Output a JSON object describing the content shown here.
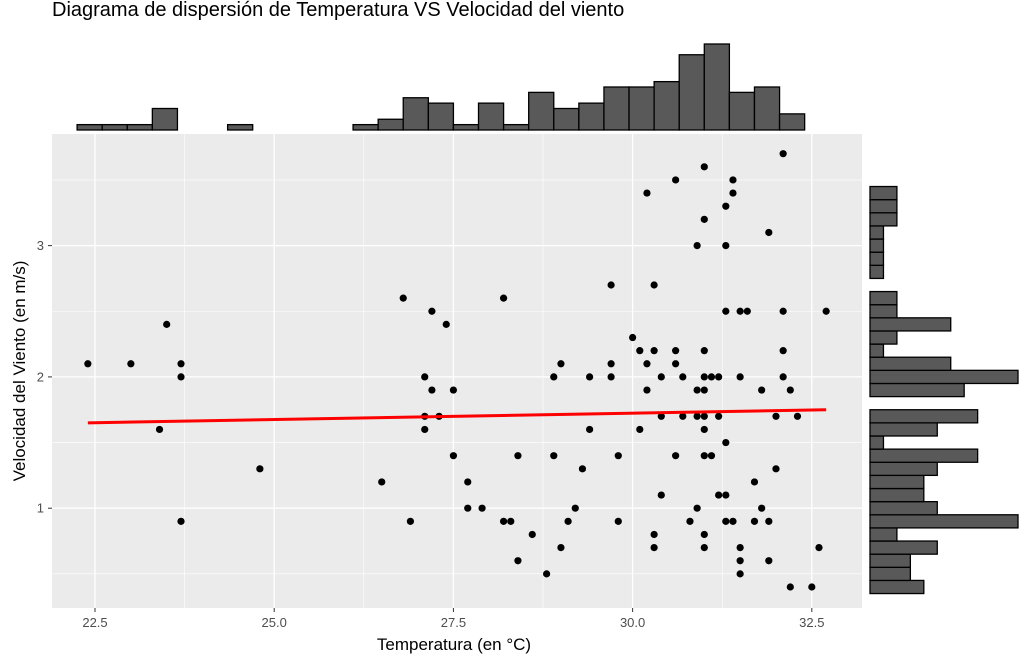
{
  "chart_data": {
    "type": "scatter",
    "title": "Diagrama de dispersión de Temperatura VS Velocidad del viento",
    "xlabel": "Temperatura (en °C)",
    "ylabel": "Velocidad del Viento (en m/s)",
    "xlim": [
      21.9,
      33.2
    ],
    "ylim": [
      0.24,
      3.85
    ],
    "xticks": [
      22.5,
      25.0,
      27.5,
      30.0,
      32.5
    ],
    "xtick_labels": [
      "22.5",
      "25.0",
      "27.5",
      "30.0",
      "32.5"
    ],
    "yticks": [
      1,
      2,
      3
    ],
    "ytick_labels": [
      "1",
      "2",
      "3"
    ],
    "grid": true,
    "background": "#EBEBEB",
    "point_color": "#000000",
    "trend_line": {
      "color": "#FF0000",
      "x": [
        22.4,
        32.7
      ],
      "y": [
        1.65,
        1.75
      ]
    },
    "points": [
      [
        22.4,
        2.1
      ],
      [
        23.0,
        2.1
      ],
      [
        23.4,
        1.6
      ],
      [
        23.5,
        2.4
      ],
      [
        23.7,
        2.1
      ],
      [
        23.7,
        2.0
      ],
      [
        23.7,
        0.9
      ],
      [
        24.8,
        1.3
      ],
      [
        26.5,
        1.2
      ],
      [
        26.8,
        2.6
      ],
      [
        26.9,
        0.9
      ],
      [
        27.1,
        2.0
      ],
      [
        27.1,
        1.7
      ],
      [
        27.1,
        1.6
      ],
      [
        27.2,
        2.5
      ],
      [
        27.2,
        1.9
      ],
      [
        27.3,
        1.7
      ],
      [
        27.4,
        2.4
      ],
      [
        27.5,
        1.9
      ],
      [
        27.5,
        1.4
      ],
      [
        27.7,
        1.2
      ],
      [
        27.7,
        1.0
      ],
      [
        27.9,
        1.0
      ],
      [
        28.2,
        2.6
      ],
      [
        28.2,
        0.9
      ],
      [
        28.3,
        0.9
      ],
      [
        28.4,
        1.4
      ],
      [
        28.4,
        0.6
      ],
      [
        28.6,
        0.8
      ],
      [
        28.8,
        0.5
      ],
      [
        28.9,
        2.0
      ],
      [
        28.9,
        1.4
      ],
      [
        29.0,
        2.1
      ],
      [
        29.0,
        0.7
      ],
      [
        29.1,
        0.9
      ],
      [
        29.2,
        1.0
      ],
      [
        29.3,
        1.3
      ],
      [
        29.4,
        2.0
      ],
      [
        29.4,
        1.6
      ],
      [
        29.7,
        2.7
      ],
      [
        29.7,
        2.1
      ],
      [
        29.7,
        2.0
      ],
      [
        29.8,
        1.4
      ],
      [
        29.8,
        0.9
      ],
      [
        30.0,
        2.3
      ],
      [
        30.1,
        2.2
      ],
      [
        30.1,
        1.6
      ],
      [
        30.2,
        3.4
      ],
      [
        30.2,
        2.1
      ],
      [
        30.2,
        1.9
      ],
      [
        30.3,
        2.7
      ],
      [
        30.3,
        2.2
      ],
      [
        30.3,
        0.8
      ],
      [
        30.3,
        0.7
      ],
      [
        30.4,
        2.0
      ],
      [
        30.4,
        1.7
      ],
      [
        30.4,
        1.1
      ],
      [
        30.6,
        3.5
      ],
      [
        30.6,
        2.2
      ],
      [
        30.6,
        2.1
      ],
      [
        30.6,
        1.4
      ],
      [
        30.7,
        2.0
      ],
      [
        30.7,
        1.7
      ],
      [
        30.8,
        0.9
      ],
      [
        30.9,
        3.0
      ],
      [
        30.9,
        1.9
      ],
      [
        30.9,
        1.7
      ],
      [
        30.9,
        1.0
      ],
      [
        31.0,
        3.6
      ],
      [
        31.0,
        3.2
      ],
      [
        31.0,
        2.2
      ],
      [
        31.0,
        2.0
      ],
      [
        31.0,
        1.9
      ],
      [
        31.0,
        1.7
      ],
      [
        31.0,
        1.6
      ],
      [
        31.0,
        1.4
      ],
      [
        31.0,
        0.8
      ],
      [
        31.0,
        0.7
      ],
      [
        31.1,
        2.0
      ],
      [
        31.1,
        1.4
      ],
      [
        31.2,
        2.0
      ],
      [
        31.2,
        1.7
      ],
      [
        31.2,
        1.1
      ],
      [
        31.3,
        3.3
      ],
      [
        31.3,
        3.0
      ],
      [
        31.3,
        2.5
      ],
      [
        31.3,
        1.5
      ],
      [
        31.3,
        1.1
      ],
      [
        31.3,
        0.9
      ],
      [
        31.4,
        3.5
      ],
      [
        31.4,
        3.4
      ],
      [
        31.4,
        0.9
      ],
      [
        31.5,
        2.5
      ],
      [
        31.5,
        2.0
      ],
      [
        31.5,
        0.7
      ],
      [
        31.5,
        0.6
      ],
      [
        31.5,
        0.5
      ],
      [
        31.6,
        2.5
      ],
      [
        31.7,
        1.2
      ],
      [
        31.7,
        0.9
      ],
      [
        31.8,
        1.9
      ],
      [
        31.8,
        1.0
      ],
      [
        31.9,
        3.1
      ],
      [
        31.9,
        0.9
      ],
      [
        31.9,
        0.6
      ],
      [
        32.0,
        1.7
      ],
      [
        32.0,
        1.3
      ],
      [
        32.1,
        3.7
      ],
      [
        32.1,
        2.5
      ],
      [
        32.1,
        2.2
      ],
      [
        32.1,
        2.0
      ],
      [
        32.2,
        1.9
      ],
      [
        32.2,
        0.4
      ],
      [
        32.3,
        1.7
      ],
      [
        32.5,
        0.4
      ],
      [
        32.6,
        0.7
      ],
      [
        32.7,
        2.5
      ]
    ],
    "x_histogram": {
      "bin_start": 22.25,
      "bin_width": 0.35,
      "counts": [
        1,
        1,
        1,
        4,
        0,
        0,
        1,
        0,
        0,
        0,
        0,
        1,
        2,
        6,
        5,
        1,
        5,
        1,
        7,
        4,
        5,
        8,
        8,
        9,
        14,
        16,
        7,
        8,
        3
      ]
    },
    "y_histogram": {
      "bin_start": 0.35,
      "bin_width": 0.1,
      "counts": [
        4,
        3,
        3,
        5,
        2,
        11,
        5,
        4,
        4,
        5,
        8,
        1,
        5,
        8,
        0,
        7,
        11,
        6,
        1,
        2,
        6,
        2,
        2,
        0,
        1,
        1,
        1,
        1,
        2,
        2,
        2
      ]
    }
  }
}
